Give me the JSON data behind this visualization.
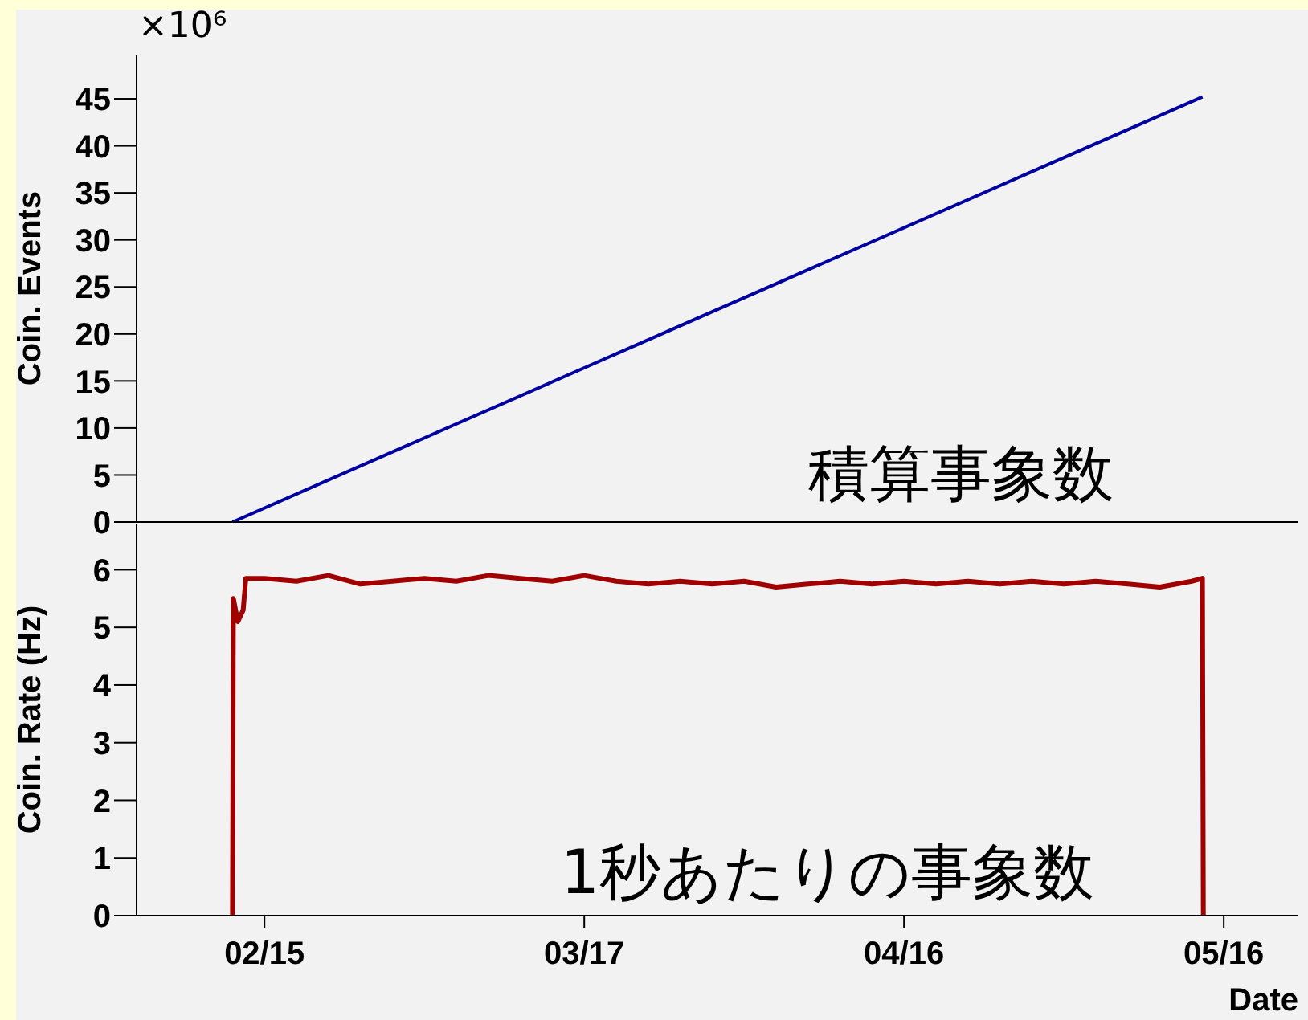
{
  "chart_data": [
    {
      "type": "line",
      "ylabel": "Coin. Events",
      "annotations": [
        "×10⁶",
        "積算事象数"
      ],
      "tick_labels": "y",
      "xlim": [
        "--02-03",
        "--05-23"
      ],
      "xticks": [
        {
          "value": "--02-15",
          "label": null
        },
        {
          "value": "--03-17",
          "label": null
        },
        {
          "value": "--04-16",
          "label": null
        },
        {
          "value": "--05-16",
          "label": null
        }
      ],
      "ylim": [
        0,
        49.7
      ],
      "yticks": [
        0,
        5,
        10,
        15,
        20,
        25,
        30,
        35,
        40,
        45
      ],
      "series": [
        {
          "color": "#0000a0",
          "x": [
            "--02-12",
            "--05-14"
          ],
          "values": [
            0,
            45.2
          ]
        }
      ]
    },
    {
      "type": "line",
      "ylabel": "Coin. Rate (Hz)",
      "xlabel": "Date",
      "annotations": [
        "1秒あたりの事象数"
      ],
      "xlim": [
        "--02-03",
        "--05-23"
      ],
      "xticks": [
        {
          "value": "--02-15",
          "label": "02/15"
        },
        {
          "value": "--03-17",
          "label": "03/17"
        },
        {
          "value": "--04-16",
          "label": "04/16"
        },
        {
          "value": "--05-16",
          "label": "05/16"
        }
      ],
      "ylim": [
        0,
        6.8
      ],
      "yticks": [
        0,
        1,
        2,
        3,
        4,
        5,
        6
      ],
      "series": [
        {
          "color": "#a00000",
          "x": [
            "--02-12T00:00",
            "--02-12T02:00",
            "--02-12T12:00",
            "--02-13T00:00",
            "--02-13T06:00",
            "--02-15T00:00",
            "--02-18T00:00",
            "--02-21T00:00",
            "--02-24T00:00",
            "--02-27T00:00",
            "--03-02T00:00",
            "--03-05T00:00",
            "--03-08T00:00",
            "--03-11T00:00",
            "--03-14T00:00",
            "--03-17T00:00",
            "--03-20T00:00",
            "--03-23T00:00",
            "--03-26T00:00",
            "--03-29T00:00",
            "--04-01T00:00",
            "--04-04T00:00",
            "--04-07T00:00",
            "--04-10T00:00",
            "--04-13T00:00",
            "--04-16T00:00",
            "--04-19T00:00",
            "--04-22T00:00",
            "--04-25T00:00",
            "--04-28T00:00",
            "--05-01T00:00",
            "--05-04T00:00",
            "--05-07T00:00",
            "--05-10T00:00",
            "--05-13T00:00",
            "--05-14T00:00",
            "--05-14T02:00"
          ],
          "values": [
            0,
            5.5,
            5.1,
            5.3,
            5.85,
            5.85,
            5.8,
            5.9,
            5.75,
            5.8,
            5.85,
            5.8,
            5.9,
            5.85,
            5.8,
            5.9,
            5.8,
            5.75,
            5.8,
            5.75,
            5.8,
            5.7,
            5.75,
            5.8,
            5.75,
            5.8,
            5.75,
            5.8,
            5.75,
            5.8,
            5.75,
            5.8,
            5.75,
            5.7,
            5.8,
            5.85,
            0
          ]
        }
      ]
    }
  ]
}
